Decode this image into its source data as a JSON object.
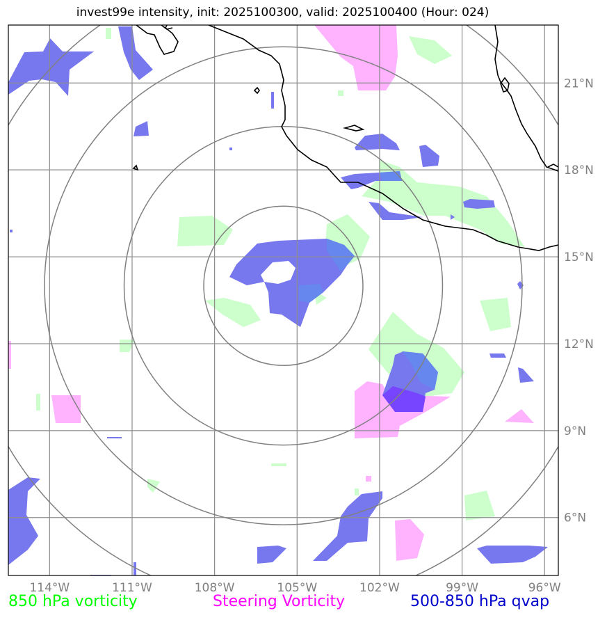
{
  "title": "invest99e intensity, init: 2025100300, valid: 2025100400 (Hour: 024)",
  "legend": {
    "vort850": {
      "label": "850 hPa vorticity",
      "color": "#00ff00"
    },
    "steering": {
      "label": "Steering Vorticity",
      "color": "#ff00ff"
    },
    "qvap": {
      "label": "500-850 hPa qvap",
      "color": "#0000cc"
    }
  },
  "fill_colors": {
    "green": "#ccffcc",
    "pink": "#ffb3ff",
    "blue": "#7777ee",
    "purple": "#7744ff"
  },
  "map": {
    "lon_range": [
      -115.5,
      -95.5
    ],
    "lat_range": [
      4.0,
      23.0
    ],
    "center": {
      "lon": -105.5,
      "lat": 14.0
    },
    "lat_ticks": [
      {
        "value": 21,
        "label": "21°N"
      },
      {
        "value": 18,
        "label": "18°N"
      },
      {
        "value": 15,
        "label": "15°N"
      },
      {
        "value": 12,
        "label": "12°N"
      },
      {
        "value": 9,
        "label": "9°N"
      },
      {
        "value": 6,
        "label": "6°N"
      }
    ],
    "lon_ticks": [
      {
        "value": -114,
        "label": "114°W"
      },
      {
        "value": -111,
        "label": "111°W"
      },
      {
        "value": -108,
        "label": "108°W"
      },
      {
        "value": -105,
        "label": "105°W"
      },
      {
        "value": -102,
        "label": "102°W"
      },
      {
        "value": -99,
        "label": "99°W"
      },
      {
        "value": -96,
        "label": "96°W"
      }
    ],
    "range_rings_deg": [
      2.75,
      5.5,
      8.25,
      11.0
    ]
  }
}
